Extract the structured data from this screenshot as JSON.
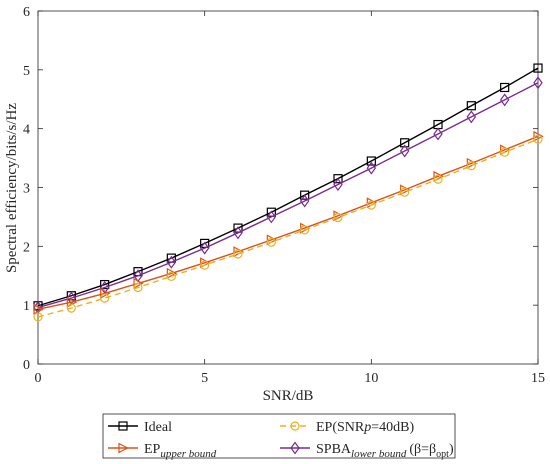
{
  "chart_data": {
    "type": "line",
    "xlabel": "SNR/dB",
    "ylabel": "Spectral efficiency/bits/s/Hz",
    "xlim": [
      0,
      15
    ],
    "ylim": [
      0,
      6
    ],
    "xticks": [
      0,
      5,
      10,
      15
    ],
    "yticks": [
      0,
      1,
      2,
      3,
      4,
      5,
      6
    ],
    "grid": false,
    "legend_placement": "bottom",
    "x": [
      0,
      1,
      2,
      3,
      4,
      5,
      6,
      7,
      8,
      9,
      10,
      11,
      12,
      13,
      14,
      15
    ],
    "series": [
      {
        "name": "Ideal",
        "color": "#000000",
        "marker": "square",
        "dash": "solid",
        "values": [
          0.99,
          1.16,
          1.35,
          1.57,
          1.8,
          2.05,
          2.31,
          2.58,
          2.87,
          3.15,
          3.45,
          3.76,
          4.07,
          4.39,
          4.7,
          5.03
        ]
      },
      {
        "name": "SPBA",
        "sub": "lower bound",
        "extra": "(β=β",
        "extra_sub": "opt",
        "extra_end": ")",
        "color": "#7b2c8e",
        "marker": "diamond",
        "dash": "solid",
        "values": [
          0.96,
          1.12,
          1.3,
          1.5,
          1.73,
          1.97,
          2.23,
          2.5,
          2.77,
          3.05,
          3.33,
          3.62,
          3.91,
          4.2,
          4.49,
          4.78
        ]
      },
      {
        "name": "EP",
        "sub": "upper bound",
        "color": "#d95319",
        "marker": "triangle-right",
        "dash": "solid",
        "values": [
          0.93,
          1.05,
          1.2,
          1.37,
          1.54,
          1.72,
          1.91,
          2.11,
          2.31,
          2.52,
          2.74,
          2.96,
          3.19,
          3.41,
          3.64,
          3.87
        ]
      },
      {
        "name": "EP(SNR",
        "name_italic": "p",
        "name_end": "=40dB)",
        "color": "#edb120",
        "marker": "circle",
        "dash": "dashed",
        "values": [
          0.8,
          0.95,
          1.12,
          1.3,
          1.49,
          1.68,
          1.87,
          2.07,
          2.28,
          2.49,
          2.7,
          2.92,
          3.14,
          3.37,
          3.6,
          3.82
        ]
      }
    ]
  }
}
